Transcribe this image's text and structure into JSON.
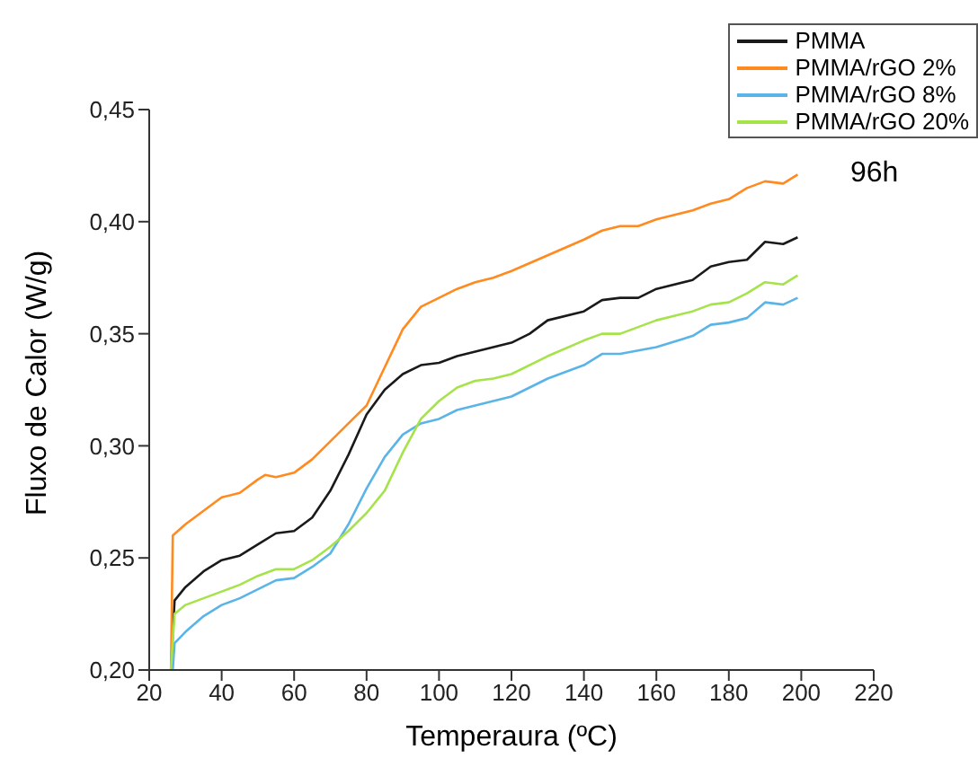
{
  "chart_data": {
    "type": "line",
    "xlabel": "Temperaura (ºC)",
    "ylabel": "Fluxo de Calor (W/g)",
    "annotations": [
      "96h"
    ],
    "legend": "top right",
    "grid": false,
    "marker": "none",
    "line_style": "solid",
    "xlim": [
      20,
      220
    ],
    "xticks": [
      20,
      40,
      60,
      80,
      100,
      120,
      140,
      160,
      180,
      200,
      220
    ],
    "ylim": [
      0.2,
      0.45
    ],
    "yticks": [
      {
        "value": 0.2,
        "label": "0,20"
      },
      {
        "value": 0.25,
        "label": "0,25"
      },
      {
        "value": 0.3,
        "label": "0,30"
      },
      {
        "value": 0.35,
        "label": "0,35"
      },
      {
        "value": 0.4,
        "label": "0,40"
      },
      {
        "value": 0.45,
        "label": "0,45"
      }
    ],
    "series": [
      {
        "name": "PMMA",
        "color": "#1a1a1a",
        "x": [
          26,
          27,
          30,
          35,
          40,
          45,
          50,
          55,
          60,
          65,
          70,
          75,
          80,
          85,
          90,
          95,
          100,
          105,
          110,
          120,
          125,
          130,
          140,
          145,
          150,
          155,
          160,
          170,
          175,
          180,
          185,
          190,
          195,
          199
        ],
        "values": [
          0.2,
          0.231,
          0.237,
          0.244,
          0.249,
          0.251,
          0.256,
          0.261,
          0.262,
          0.268,
          0.28,
          0.296,
          0.314,
          0.325,
          0.332,
          0.336,
          0.337,
          0.34,
          0.342,
          0.346,
          0.35,
          0.356,
          0.36,
          0.365,
          0.366,
          0.366,
          0.37,
          0.374,
          0.38,
          0.382,
          0.383,
          0.391,
          0.39,
          0.393
        ]
      },
      {
        "name": "PMMA/rGO 2%",
        "color": "#ff8a1f",
        "x": [
          26,
          26.5,
          30,
          35,
          40,
          45,
          50,
          52,
          55,
          60,
          65,
          70,
          75,
          80,
          85,
          90,
          95,
          100,
          105,
          110,
          115,
          120,
          130,
          140,
          145,
          150,
          155,
          160,
          165,
          170,
          175,
          180,
          185,
          190,
          195,
          199
        ],
        "values": [
          0.2,
          0.26,
          0.265,
          0.271,
          0.277,
          0.279,
          0.285,
          0.287,
          0.286,
          0.288,
          0.294,
          0.302,
          0.31,
          0.318,
          0.335,
          0.352,
          0.362,
          0.366,
          0.37,
          0.373,
          0.375,
          0.378,
          0.385,
          0.392,
          0.396,
          0.398,
          0.398,
          0.401,
          0.403,
          0.405,
          0.408,
          0.41,
          0.415,
          0.418,
          0.417,
          0.421
        ]
      },
      {
        "name": "PMMA/rGO 8%",
        "color": "#5ab4e8",
        "x": [
          26.5,
          27,
          30,
          35,
          40,
          45,
          50,
          55,
          60,
          65,
          70,
          75,
          80,
          85,
          90,
          95,
          100,
          105,
          110,
          120,
          130,
          140,
          145,
          150,
          160,
          170,
          175,
          180,
          185,
          190,
          195,
          199
        ],
        "values": [
          0.2,
          0.212,
          0.217,
          0.224,
          0.229,
          0.232,
          0.236,
          0.24,
          0.241,
          0.246,
          0.252,
          0.265,
          0.281,
          0.295,
          0.305,
          0.31,
          0.312,
          0.316,
          0.318,
          0.322,
          0.33,
          0.336,
          0.341,
          0.341,
          0.344,
          0.349,
          0.354,
          0.355,
          0.357,
          0.364,
          0.363,
          0.366
        ]
      },
      {
        "name": "PMMA/rGO 20%",
        "color": "#a6e34a",
        "x": [
          26,
          27,
          30,
          35,
          40,
          45,
          50,
          55,
          60,
          65,
          70,
          75,
          80,
          85,
          90,
          95,
          100,
          105,
          110,
          115,
          120,
          130,
          140,
          145,
          150,
          160,
          170,
          175,
          180,
          185,
          190,
          195,
          199
        ],
        "values": [
          0.2,
          0.225,
          0.229,
          0.232,
          0.235,
          0.238,
          0.242,
          0.245,
          0.245,
          0.249,
          0.255,
          0.262,
          0.27,
          0.28,
          0.297,
          0.312,
          0.32,
          0.326,
          0.329,
          0.33,
          0.332,
          0.34,
          0.347,
          0.35,
          0.35,
          0.356,
          0.36,
          0.363,
          0.364,
          0.368,
          0.373,
          0.372,
          0.376
        ]
      }
    ]
  }
}
